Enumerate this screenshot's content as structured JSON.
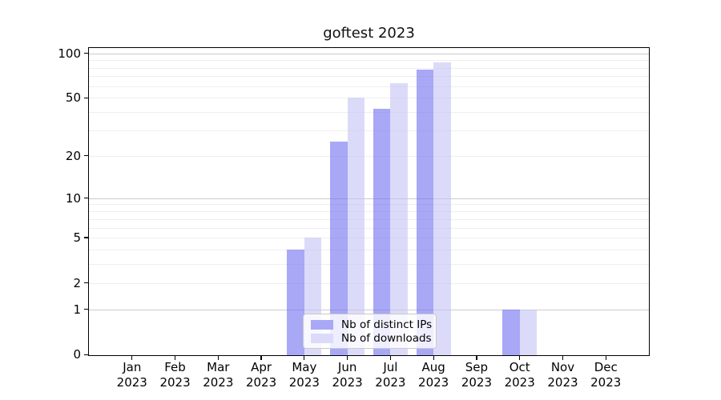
{
  "chart_data": {
    "type": "bar",
    "title": "goftest 2023",
    "categories": [
      "Jan",
      "Feb",
      "Mar",
      "Apr",
      "May",
      "Jun",
      "Jul",
      "Aug",
      "Sep",
      "Oct",
      "Nov",
      "Dec"
    ],
    "year_label": "2023",
    "series": [
      {
        "key": "distinct-ips",
        "name": "Nb of distinct IPs",
        "color": "#a8a8f7",
        "fill": "rgba(115,115,242,0.62)",
        "values": [
          0,
          0,
          0,
          0,
          4,
          25,
          42,
          78,
          0,
          1,
          0,
          0
        ]
      },
      {
        "key": "downloads",
        "name": "Nb of downloads",
        "color": "#dbdbf9",
        "fill": "rgba(197,197,245,0.62)",
        "values": [
          0,
          0,
          0,
          0,
          5,
          50,
          63,
          87,
          0,
          1,
          0,
          0
        ]
      }
    ],
    "y_axis": {
      "scale": "log1p",
      "ticks": [
        0,
        1,
        2,
        5,
        10,
        20,
        50,
        100
      ],
      "major_gridlines": [
        1,
        10,
        100
      ],
      "minor_gridlines": [
        2,
        3,
        4,
        5,
        6,
        7,
        8,
        9,
        20,
        30,
        40,
        50,
        60,
        70,
        80,
        90
      ],
      "range": [
        0,
        110
      ]
    },
    "x_axis": {
      "tick_label_format": "month over year, two lines"
    },
    "legend": {
      "position": "bottom-center",
      "items": [
        "Nb of distinct IPs",
        "Nb of downloads"
      ]
    },
    "grid": true
  },
  "colors": {
    "major_grid": "#cbcbcb",
    "minor_grid": "#efefef",
    "spine": "#000000",
    "text": "#000000",
    "legend_border": "#c9c9c9",
    "legend_bg": "rgba(255,255,255,0.8)"
  }
}
